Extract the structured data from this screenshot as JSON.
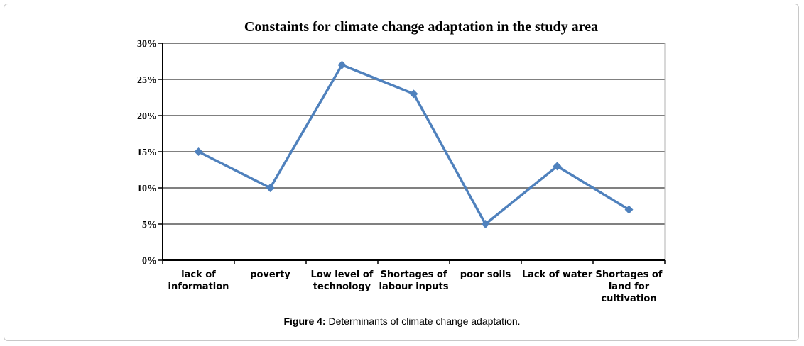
{
  "chart_data": {
    "type": "line",
    "title": "Constaints for climate change adaptation in the study area",
    "categories": [
      [
        "lack of",
        "information"
      ],
      [
        "poverty"
      ],
      [
        "Low level of",
        "technology"
      ],
      [
        "Shortages of",
        "labour inputs"
      ],
      [
        "poor soils"
      ],
      [
        "Lack of water"
      ],
      [
        "Shortages of",
        "land for",
        "cultivation"
      ]
    ],
    "values": [
      15,
      10,
      27,
      23,
      5,
      13,
      7
    ],
    "y_ticks": [
      "0%",
      "5%",
      "10%",
      "15%",
      "20%",
      "25%",
      "30%"
    ],
    "ylim": [
      0,
      30
    ],
    "grid": true,
    "series_color": "#4f81bd",
    "grid_color": "#808080"
  },
  "caption": {
    "label": "Figure 4:",
    "text": " Determinants of climate change adaptation."
  }
}
